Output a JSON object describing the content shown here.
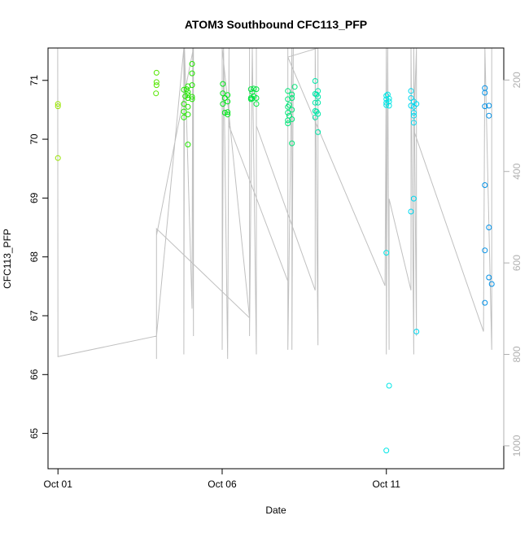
{
  "chart_data": {
    "type": "scatter",
    "title": "ATOM3 Southbound CFC113_PFP",
    "xlabel": "Date",
    "ylabel": "CFC113_PFP",
    "x_ticks": [
      "Oct 01",
      "Oct 06",
      "Oct 11"
    ],
    "x_tick_dates": [
      "2016-10-01",
      "2016-10-06",
      "2016-10-11"
    ],
    "xlim": [
      "2016-09-30T16:44",
      "2016-10-14T13:48"
    ],
    "ylim": [
      64.4,
      71.55
    ],
    "y_ticks": [
      65,
      66,
      67,
      68,
      69,
      70,
      71
    ],
    "secondary_y": {
      "ticks": [
        200,
        400,
        600,
        800,
        1000
      ],
      "lim": [
        1050,
        130
      ],
      "color": "#b0b0b0"
    },
    "grid": false,
    "legend": "none",
    "series": [
      {
        "color": "#99e600",
        "points": [
          {
            "x": "2016-10-01T00:00",
            "y": 70.6
          },
          {
            "x": "2016-10-01T00:00",
            "y": 70.56
          },
          {
            "x": "2016-10-01T00:00",
            "y": 69.68
          }
        ]
      },
      {
        "color": "#55e600",
        "points": [
          {
            "x": "2016-10-04T00:00",
            "y": 71.13
          },
          {
            "x": "2016-10-04T00:00",
            "y": 70.97
          },
          {
            "x": "2016-10-04T00:00",
            "y": 70.92
          },
          {
            "x": "2016-10-03T23:40",
            "y": 70.78
          }
        ]
      },
      {
        "color": "#22e600",
        "points": [
          {
            "x": "2016-10-04T20:00",
            "y": 70.84
          },
          {
            "x": "2016-10-04T20:00",
            "y": 70.6
          },
          {
            "x": "2016-10-04T20:00",
            "y": 70.47
          },
          {
            "x": "2016-10-04T20:00",
            "y": 70.37
          },
          {
            "x": "2016-10-04T23:00",
            "y": 70.9
          },
          {
            "x": "2016-10-04T23:00",
            "y": 70.8
          },
          {
            "x": "2016-10-04T23:00",
            "y": 70.75
          },
          {
            "x": "2016-10-04T23:00",
            "y": 70.7
          },
          {
            "x": "2016-10-04T23:00",
            "y": 70.55
          },
          {
            "x": "2016-10-04T23:00",
            "y": 70.42
          },
          {
            "x": "2016-10-04T23:00",
            "y": 69.91
          },
          {
            "x": "2016-10-05T02:00",
            "y": 71.28
          },
          {
            "x": "2016-10-05T02:00",
            "y": 71.12
          },
          {
            "x": "2016-10-05T02:00",
            "y": 70.92
          },
          {
            "x": "2016-10-05T02:00",
            "y": 70.72
          },
          {
            "x": "2016-10-05T02:00",
            "y": 70.68
          },
          {
            "x": "2016-10-04T22:00",
            "y": 70.85
          },
          {
            "x": "2016-10-04T21:00",
            "y": 70.73
          }
        ]
      },
      {
        "color": "#00e61a",
        "points": [
          {
            "x": "2016-10-06T00:30",
            "y": 70.94
          },
          {
            "x": "2016-10-06T00:30",
            "y": 70.78
          },
          {
            "x": "2016-10-06T00:30",
            "y": 70.6
          },
          {
            "x": "2016-10-06T04:00",
            "y": 70.75
          },
          {
            "x": "2016-10-06T04:00",
            "y": 70.64
          },
          {
            "x": "2016-10-06T04:00",
            "y": 70.46
          },
          {
            "x": "2016-10-06T04:00",
            "y": 70.42
          },
          {
            "x": "2016-10-06T02:00",
            "y": 70.7
          },
          {
            "x": "2016-10-06T02:00",
            "y": 70.45
          }
        ]
      },
      {
        "color": "#00e640",
        "points": [
          {
            "x": "2016-10-06T21:00",
            "y": 70.85
          },
          {
            "x": "2016-10-06T21:00",
            "y": 70.7
          },
          {
            "x": "2016-10-06T21:00",
            "y": 70.68
          },
          {
            "x": "2016-10-06T23:00",
            "y": 70.86
          },
          {
            "x": "2016-10-06T23:00",
            "y": 70.73
          },
          {
            "x": "2016-10-07T01:00",
            "y": 70.85
          },
          {
            "x": "2016-10-07T01:00",
            "y": 70.7
          },
          {
            "x": "2016-10-07T01:00",
            "y": 70.6
          },
          {
            "x": "2016-10-06T22:00",
            "y": 70.8
          },
          {
            "x": "2016-10-06T22:00",
            "y": 70.69
          }
        ]
      },
      {
        "color": "#00e678",
        "points": [
          {
            "x": "2016-10-08T00:00",
            "y": 70.82
          },
          {
            "x": "2016-10-08T00:00",
            "y": 70.68
          },
          {
            "x": "2016-10-08T00:00",
            "y": 70.55
          },
          {
            "x": "2016-10-08T00:00",
            "y": 70.45
          },
          {
            "x": "2016-10-08T00:00",
            "y": 70.32
          },
          {
            "x": "2016-10-08T00:00",
            "y": 70.27
          },
          {
            "x": "2016-10-08T03:00",
            "y": 70.76
          },
          {
            "x": "2016-10-08T03:00",
            "y": 70.7
          },
          {
            "x": "2016-10-08T03:00",
            "y": 70.5
          },
          {
            "x": "2016-10-08T03:00",
            "y": 70.34
          },
          {
            "x": "2016-10-08T03:00",
            "y": 69.93
          },
          {
            "x": "2016-10-08T05:00",
            "y": 70.89
          },
          {
            "x": "2016-10-08T01:00",
            "y": 70.58
          },
          {
            "x": "2016-10-08T01:00",
            "y": 70.4
          }
        ]
      },
      {
        "color": "#00e6a8",
        "points": [
          {
            "x": "2016-10-08T20:00",
            "y": 70.99
          },
          {
            "x": "2016-10-08T20:00",
            "y": 70.77
          },
          {
            "x": "2016-10-08T20:00",
            "y": 70.62
          },
          {
            "x": "2016-10-08T20:00",
            "y": 70.48
          },
          {
            "x": "2016-10-08T20:00",
            "y": 70.37
          },
          {
            "x": "2016-10-08T22:00",
            "y": 70.82
          },
          {
            "x": "2016-10-08T22:00",
            "y": 70.72
          },
          {
            "x": "2016-10-08T22:00",
            "y": 70.62
          },
          {
            "x": "2016-10-08T22:00",
            "y": 70.43
          },
          {
            "x": "2016-10-08T22:00",
            "y": 70.12
          },
          {
            "x": "2016-10-08T21:00",
            "y": 70.76
          },
          {
            "x": "2016-10-08T21:00",
            "y": 70.47
          }
        ]
      },
      {
        "color": "#00e6e6",
        "points": [
          {
            "x": "2016-10-11T00:00",
            "y": 70.74
          },
          {
            "x": "2016-10-11T00:00",
            "y": 70.68
          },
          {
            "x": "2016-10-11T00:00",
            "y": 70.62
          },
          {
            "x": "2016-10-11T00:00",
            "y": 70.58
          },
          {
            "x": "2016-10-11T00:00",
            "y": 68.07
          },
          {
            "x": "2016-10-11T00:00",
            "y": 64.71
          },
          {
            "x": "2016-10-11T02:00",
            "y": 70.69
          },
          {
            "x": "2016-10-11T02:00",
            "y": 70.64
          },
          {
            "x": "2016-10-11T02:00",
            "y": 70.57
          },
          {
            "x": "2016-10-11T02:00",
            "y": 65.81
          },
          {
            "x": "2016-10-11T01:00",
            "y": 70.76
          }
        ]
      },
      {
        "color": "#00d8f0",
        "points": [
          {
            "x": "2016-10-11T18:00",
            "y": 70.82
          },
          {
            "x": "2016-10-11T18:00",
            "y": 70.7
          },
          {
            "x": "2016-10-11T18:00",
            "y": 70.57
          },
          {
            "x": "2016-10-11T18:00",
            "y": 68.77
          },
          {
            "x": "2016-10-11T20:00",
            "y": 70.64
          },
          {
            "x": "2016-10-11T20:00",
            "y": 70.55
          },
          {
            "x": "2016-10-11T20:00",
            "y": 70.45
          },
          {
            "x": "2016-10-11T20:00",
            "y": 70.4
          },
          {
            "x": "2016-10-11T20:00",
            "y": 70.28
          },
          {
            "x": "2016-10-11T20:00",
            "y": 68.99
          },
          {
            "x": "2016-10-11T22:00",
            "y": 70.6
          },
          {
            "x": "2016-10-11T22:00",
            "y": 66.73
          }
        ]
      },
      {
        "color": "#0090e6",
        "points": [
          {
            "x": "2016-10-14T00:00",
            "y": 70.87
          },
          {
            "x": "2016-10-14T00:00",
            "y": 70.79
          },
          {
            "x": "2016-10-14T00:00",
            "y": 70.56
          },
          {
            "x": "2016-10-14T00:00",
            "y": 69.22
          },
          {
            "x": "2016-10-14T00:00",
            "y": 68.11
          },
          {
            "x": "2016-10-14T00:00",
            "y": 67.22
          },
          {
            "x": "2016-10-14T03:00",
            "y": 70.57
          },
          {
            "x": "2016-10-14T03:00",
            "y": 70.4
          },
          {
            "x": "2016-10-14T03:00",
            "y": 68.5
          },
          {
            "x": "2016-10-14T03:00",
            "y": 67.65
          },
          {
            "x": "2016-10-14T05:00",
            "y": 67.54
          }
        ]
      }
    ],
    "altitude_line": {
      "color": "#c0c0c0",
      "axis": "secondary_y",
      "points": [
        {
          "x": "2016-09-30T23:50",
          "y": 130
        },
        {
          "x": "2016-10-01T00:00",
          "y": 805
        },
        {
          "x": "2016-10-04T00:00",
          "y": 760
        },
        {
          "x": "2016-10-04T20:00",
          "y": 130
        },
        {
          "x": "2016-10-04T20:00",
          "y": 800
        },
        {
          "x": "2016-10-04T20:30",
          "y": 130
        },
        {
          "x": "2016-10-05T02:00",
          "y": 700
        },
        {
          "x": "2016-10-05T02:30",
          "y": 130
        },
        {
          "x": "2016-10-05T03:00",
          "y": 760
        },
        {
          "x": "2016-10-05T03:00",
          "y": 130
        },
        {
          "x": "2016-10-04T00:00",
          "y": 540
        },
        {
          "x": "2016-10-04T00:00",
          "y": 810
        },
        {
          "x": "2016-10-04T00:00",
          "y": 525
        },
        {
          "x": "2016-10-06T20:00",
          "y": 720
        },
        {
          "x": "2016-10-06T00:00",
          "y": 130
        },
        {
          "x": "2016-10-06T00:00",
          "y": 790
        },
        {
          "x": "2016-10-06T01:00",
          "y": 130
        },
        {
          "x": "2016-10-06T04:00",
          "y": 810
        },
        {
          "x": "2016-10-06T05:00",
          "y": 130
        },
        {
          "x": "2016-10-06T05:00",
          "y": 300
        },
        {
          "x": "2016-10-08T00:00",
          "y": 640
        },
        {
          "x": "2016-10-08T00:00",
          "y": 130
        },
        {
          "x": "2016-10-08T00:00",
          "y": 790
        },
        {
          "x": "2016-10-08T03:00",
          "y": 130
        },
        {
          "x": "2016-10-08T03:00",
          "y": 790
        },
        {
          "x": "2016-10-08T04:00",
          "y": 130
        },
        {
          "x": "2016-10-06T20:00",
          "y": 130
        },
        {
          "x": "2016-10-06T20:00",
          "y": 760
        },
        {
          "x": "2016-10-06T22:00",
          "y": 130
        },
        {
          "x": "2016-10-07T01:00",
          "y": 800
        },
        {
          "x": "2016-10-07T01:00",
          "y": 130
        },
        {
          "x": "2016-10-07T01:00",
          "y": 300
        },
        {
          "x": "2016-10-08T20:00",
          "y": 660
        },
        {
          "x": "2016-10-08T20:00",
          "y": 130
        },
        {
          "x": "2016-10-08T22:00",
          "y": 780
        },
        {
          "x": "2016-10-08T22:00",
          "y": 130
        },
        {
          "x": "2016-10-08T00:00",
          "y": 150
        },
        {
          "x": "2016-10-10T23:00",
          "y": 650
        },
        {
          "x": "2016-10-11T00:00",
          "y": 130
        },
        {
          "x": "2016-10-11T00:00",
          "y": 800
        },
        {
          "x": "2016-10-11T01:00",
          "y": 130
        },
        {
          "x": "2016-10-11T02:00",
          "y": 790
        },
        {
          "x": "2016-10-11T02:00",
          "y": 460
        },
        {
          "x": "2016-10-11T18:00",
          "y": 660
        },
        {
          "x": "2016-10-11T18:00",
          "y": 130
        },
        {
          "x": "2016-10-11T20:00",
          "y": 800
        },
        {
          "x": "2016-10-11T20:00",
          "y": 130
        },
        {
          "x": "2016-10-11T22:00",
          "y": 760
        },
        {
          "x": "2016-10-11T22:00",
          "y": 130
        },
        {
          "x": "2016-10-11T20:00",
          "y": 310
        },
        {
          "x": "2016-10-13T23:00",
          "y": 750
        },
        {
          "x": "2016-10-14T00:00",
          "y": 130
        },
        {
          "x": "2016-10-14T05:00",
          "y": 790
        },
        {
          "x": "2016-10-14T05:00",
          "y": 130
        }
      ]
    }
  }
}
